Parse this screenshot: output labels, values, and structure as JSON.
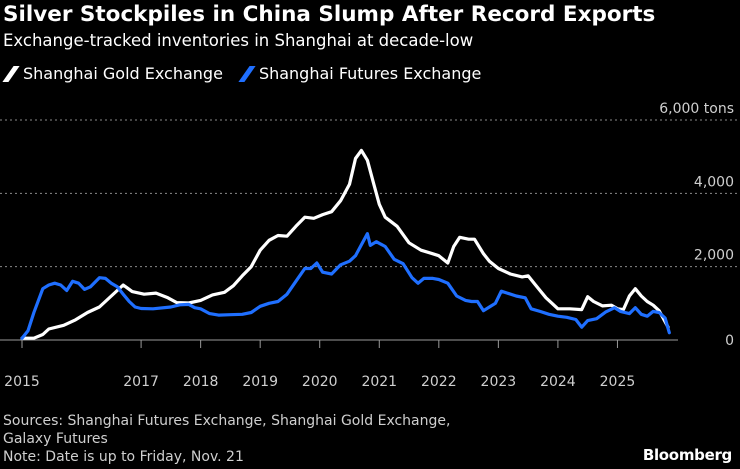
{
  "header": {
    "title": "Silver Stockpiles in China Slump After Record Exports",
    "subtitle": "Exchange-tracked inventories in Shanghai at decade-low"
  },
  "legend": [
    {
      "label": "Shanghai Gold Exchange",
      "color": "#ffffff"
    },
    {
      "label": "Shanghai Futures Exchange",
      "color": "#1f6fff"
    }
  ],
  "footer": {
    "sources": "Sources: Shanghai Futures Exchange, Shanghai Gold Exchange,",
    "sources_2": "Galaxy Futures",
    "note": "Note: Date is up to Friday, Nov. 21"
  },
  "brand": "Bloomberg",
  "chart_data": {
    "type": "line",
    "title": "Silver Stockpiles in China Slump After Record Exports",
    "subtitle": "Exchange-tracked inventories in Shanghai at decade-low",
    "y_unit": "tons",
    "ylim": [
      0,
      6000
    ],
    "yticks": [
      0,
      2000,
      4000,
      6000
    ],
    "ytick_labels": [
      "0",
      "2,000",
      "4,000",
      "6,000 tons"
    ],
    "xlim": [
      2015.0,
      2026.0
    ],
    "xticks": [
      2015,
      2017,
      2018,
      2019,
      2020,
      2021,
      2022,
      2023,
      2024,
      2025
    ],
    "xtick_labels": [
      "2015",
      "2017",
      "2018",
      "2019",
      "2020",
      "2021",
      "2022",
      "2023",
      "2024",
      "2025"
    ],
    "grid": "horizontal dotted",
    "legend_position": "top-left",
    "series": [
      {
        "name": "Shanghai Gold Exchange",
        "color": "#ffffff",
        "points": [
          [
            2015.0,
            50
          ],
          [
            2015.2,
            50
          ],
          [
            2015.35,
            150
          ],
          [
            2015.45,
            300
          ],
          [
            2015.7,
            400
          ],
          [
            2015.9,
            550
          ],
          [
            2016.1,
            750
          ],
          [
            2016.3,
            900
          ],
          [
            2016.5,
            1200
          ],
          [
            2016.7,
            1500
          ],
          [
            2016.85,
            1320
          ],
          [
            2017.05,
            1250
          ],
          [
            2017.25,
            1280
          ],
          [
            2017.45,
            1150
          ],
          [
            2017.6,
            1020
          ],
          [
            2017.8,
            1010
          ],
          [
            2018.0,
            1080
          ],
          [
            2018.2,
            1230
          ],
          [
            2018.4,
            1300
          ],
          [
            2018.55,
            1480
          ],
          [
            2018.7,
            1750
          ],
          [
            2018.85,
            2000
          ],
          [
            2019.0,
            2450
          ],
          [
            2019.15,
            2720
          ],
          [
            2019.3,
            2850
          ],
          [
            2019.45,
            2830
          ],
          [
            2019.6,
            3100
          ],
          [
            2019.75,
            3350
          ],
          [
            2019.9,
            3320
          ],
          [
            2020.05,
            3420
          ],
          [
            2020.2,
            3500
          ],
          [
            2020.35,
            3800
          ],
          [
            2020.5,
            4250
          ],
          [
            2020.6,
            4950
          ],
          [
            2020.7,
            5170
          ],
          [
            2020.8,
            4900
          ],
          [
            2020.9,
            4300
          ],
          [
            2021.0,
            3700
          ],
          [
            2021.1,
            3350
          ],
          [
            2021.3,
            3100
          ],
          [
            2021.5,
            2650
          ],
          [
            2021.7,
            2450
          ],
          [
            2021.9,
            2350
          ],
          [
            2022.0,
            2300
          ],
          [
            2022.15,
            2100
          ],
          [
            2022.25,
            2550
          ],
          [
            2022.35,
            2800
          ],
          [
            2022.5,
            2750
          ],
          [
            2022.6,
            2750
          ],
          [
            2022.75,
            2350
          ],
          [
            2022.85,
            2150
          ],
          [
            2023.0,
            1950
          ],
          [
            2023.2,
            1800
          ],
          [
            2023.4,
            1720
          ],
          [
            2023.5,
            1750
          ],
          [
            2023.6,
            1550
          ],
          [
            2023.7,
            1350
          ],
          [
            2023.8,
            1150
          ],
          [
            2023.9,
            1000
          ],
          [
            2024.0,
            850
          ],
          [
            2024.2,
            850
          ],
          [
            2024.4,
            830
          ],
          [
            2024.5,
            1180
          ],
          [
            2024.6,
            1050
          ],
          [
            2024.75,
            930
          ],
          [
            2024.9,
            950
          ],
          [
            2025.0,
            850
          ],
          [
            2025.1,
            830
          ],
          [
            2025.2,
            1200
          ],
          [
            2025.3,
            1400
          ],
          [
            2025.4,
            1200
          ],
          [
            2025.5,
            1050
          ],
          [
            2025.6,
            950
          ],
          [
            2025.7,
            800
          ],
          [
            2025.8,
            500
          ],
          [
            2025.85,
            350
          ]
        ]
      },
      {
        "name": "Shanghai Futures Exchange",
        "color": "#1f6fff",
        "points": [
          [
            2015.0,
            50
          ],
          [
            2015.1,
            250
          ],
          [
            2015.2,
            750
          ],
          [
            2015.35,
            1400
          ],
          [
            2015.45,
            1500
          ],
          [
            2015.55,
            1550
          ],
          [
            2015.65,
            1500
          ],
          [
            2015.75,
            1350
          ],
          [
            2015.85,
            1600
          ],
          [
            2015.95,
            1550
          ],
          [
            2016.05,
            1380
          ],
          [
            2016.15,
            1450
          ],
          [
            2016.3,
            1700
          ],
          [
            2016.4,
            1680
          ],
          [
            2016.5,
            1550
          ],
          [
            2016.6,
            1450
          ],
          [
            2016.7,
            1250
          ],
          [
            2016.8,
            1050
          ],
          [
            2016.9,
            900
          ],
          [
            2017.0,
            860
          ],
          [
            2017.2,
            850
          ],
          [
            2017.5,
            900
          ],
          [
            2017.65,
            960
          ],
          [
            2017.8,
            970
          ],
          [
            2017.9,
            880
          ],
          [
            2018.0,
            850
          ],
          [
            2018.15,
            720
          ],
          [
            2018.3,
            680
          ],
          [
            2018.5,
            690
          ],
          [
            2018.7,
            700
          ],
          [
            2018.85,
            750
          ],
          [
            2019.0,
            920
          ],
          [
            2019.15,
            1000
          ],
          [
            2019.3,
            1050
          ],
          [
            2019.45,
            1250
          ],
          [
            2019.6,
            1600
          ],
          [
            2019.75,
            1950
          ],
          [
            2019.85,
            1950
          ],
          [
            2019.95,
            2100
          ],
          [
            2020.05,
            1850
          ],
          [
            2020.2,
            1800
          ],
          [
            2020.35,
            2050
          ],
          [
            2020.5,
            2150
          ],
          [
            2020.6,
            2300
          ],
          [
            2020.7,
            2600
          ],
          [
            2020.8,
            2900
          ],
          [
            2020.85,
            2580
          ],
          [
            2020.95,
            2680
          ],
          [
            2021.1,
            2550
          ],
          [
            2021.25,
            2200
          ],
          [
            2021.4,
            2080
          ],
          [
            2021.55,
            1700
          ],
          [
            2021.65,
            1550
          ],
          [
            2021.75,
            1680
          ],
          [
            2021.9,
            1680
          ],
          [
            2022.0,
            1650
          ],
          [
            2022.15,
            1550
          ],
          [
            2022.3,
            1200
          ],
          [
            2022.45,
            1080
          ],
          [
            2022.55,
            1050
          ],
          [
            2022.65,
            1050
          ],
          [
            2022.75,
            800
          ],
          [
            2022.85,
            900
          ],
          [
            2022.95,
            1000
          ],
          [
            2023.05,
            1330
          ],
          [
            2023.15,
            1280
          ],
          [
            2023.3,
            1200
          ],
          [
            2023.45,
            1150
          ],
          [
            2023.55,
            850
          ],
          [
            2023.7,
            780
          ],
          [
            2023.85,
            700
          ],
          [
            2024.0,
            650
          ],
          [
            2024.15,
            620
          ],
          [
            2024.3,
            560
          ],
          [
            2024.4,
            350
          ],
          [
            2024.5,
            530
          ],
          [
            2024.65,
            580
          ],
          [
            2024.8,
            760
          ],
          [
            2024.95,
            880
          ],
          [
            2025.05,
            780
          ],
          [
            2025.2,
            720
          ],
          [
            2025.3,
            880
          ],
          [
            2025.4,
            700
          ],
          [
            2025.5,
            650
          ],
          [
            2025.6,
            780
          ],
          [
            2025.7,
            750
          ],
          [
            2025.8,
            600
          ],
          [
            2025.87,
            200
          ]
        ]
      }
    ]
  }
}
